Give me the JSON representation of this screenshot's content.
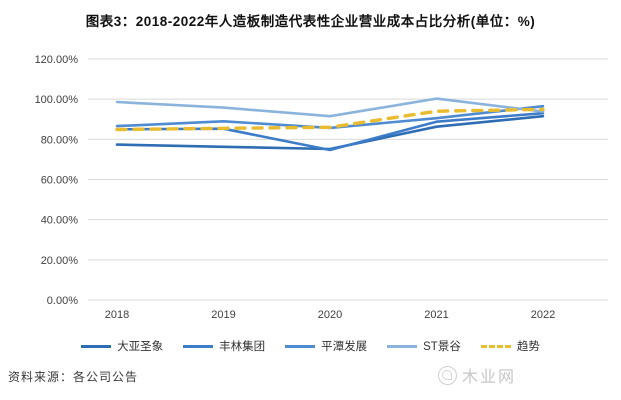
{
  "header": {
    "title": "图表3：2018-2022年人造板制造代表性企业营业成本占比分析(单位：%)"
  },
  "footer": {
    "source": "资料来源：各公司公告",
    "watermark": "木业网"
  },
  "colors": {
    "gridline": "#d9d9d9",
    "axis_text": "#404040",
    "trend": "#E9BC2F"
  },
  "chart_data": {
    "type": "line",
    "title": "图表3：2018-2022年人造板制造代表性企业营业成本占比分析(单位：%)",
    "xlabel": "",
    "ylabel": "",
    "categories": [
      "2018",
      "2019",
      "2020",
      "2021",
      "2022"
    ],
    "series": [
      {
        "name": "大亚圣象",
        "color": "#2E6DB4",
        "dash": false,
        "values": [
          77.4,
          76.3,
          75.2,
          86.3,
          91.5
        ]
      },
      {
        "name": "丰林集团",
        "color": "#3D7CC9",
        "dash": false,
        "values": [
          85.0,
          85.3,
          74.7,
          88.8,
          93.0
        ]
      },
      {
        "name": "平潭发展",
        "color": "#4F8BD0",
        "dash": false,
        "values": [
          86.6,
          89.0,
          85.7,
          90.5,
          96.5
        ]
      },
      {
        "name": "ST景谷",
        "color": "#8AB4DC",
        "dash": false,
        "values": [
          98.6,
          95.8,
          91.5,
          100.3,
          93.8
        ]
      },
      {
        "name": "趋势",
        "color": "#E9BC2F",
        "dash": true,
        "values": [
          84.9,
          85.5,
          86.0,
          94.0,
          94.9
        ]
      }
    ],
    "ylim": [
      0,
      120
    ],
    "ytick_step": 20,
    "yticks": [
      "0.00%",
      "20.00%",
      "40.00%",
      "60.00%",
      "80.00%",
      "100.00%",
      "120.00%"
    ],
    "grid": true,
    "legend_position": "bottom"
  }
}
